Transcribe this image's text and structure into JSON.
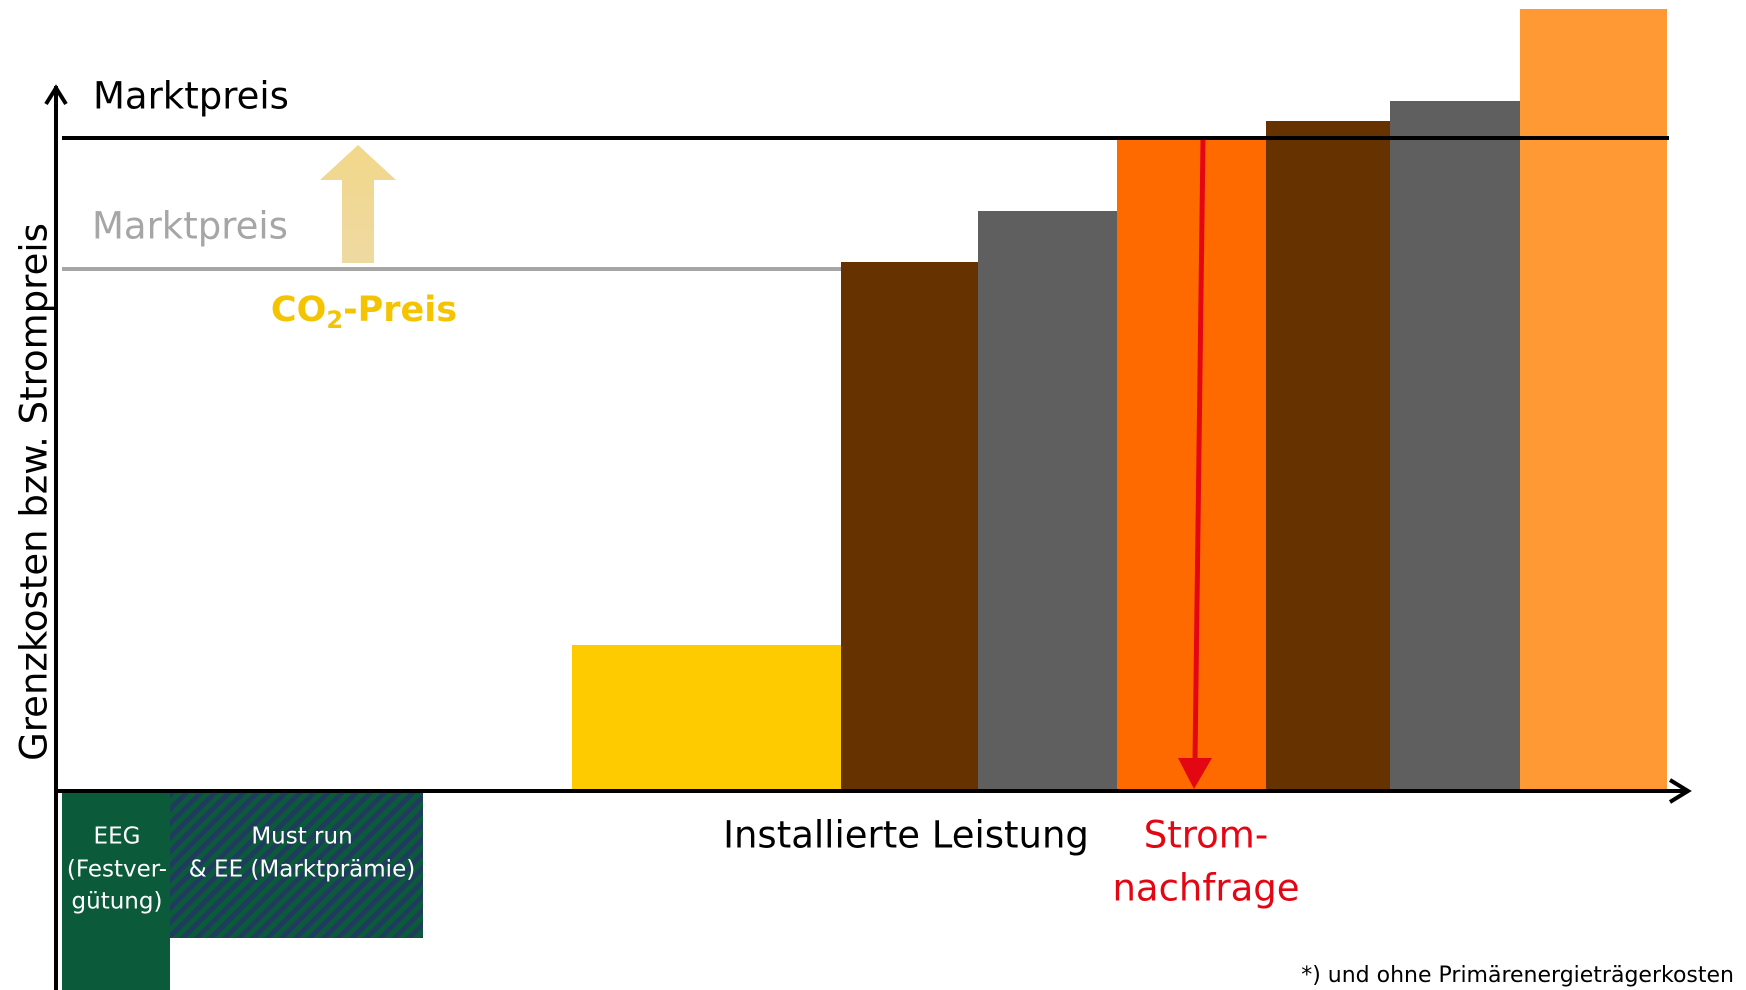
{
  "diagram": {
    "y_axis_label": "Grenzkosten bzw. Strompreis",
    "x_axis_label": "Installierte Leistung",
    "market_price_new": "Marktpreis",
    "market_price_old": "Marktpreis",
    "co2": {
      "prefix": "CO",
      "sub": "2",
      "suffix": "-Preis"
    },
    "demand": [
      "Strom-",
      "nachfrage"
    ],
    "eeg": [
      "EEG",
      "(Festver-",
      "gütung)"
    ],
    "must_run": [
      "Must run",
      "& EE (Marktprämie)"
    ],
    "footnote": "*) und ohne Primärenergieträgerkosten"
  }
}
